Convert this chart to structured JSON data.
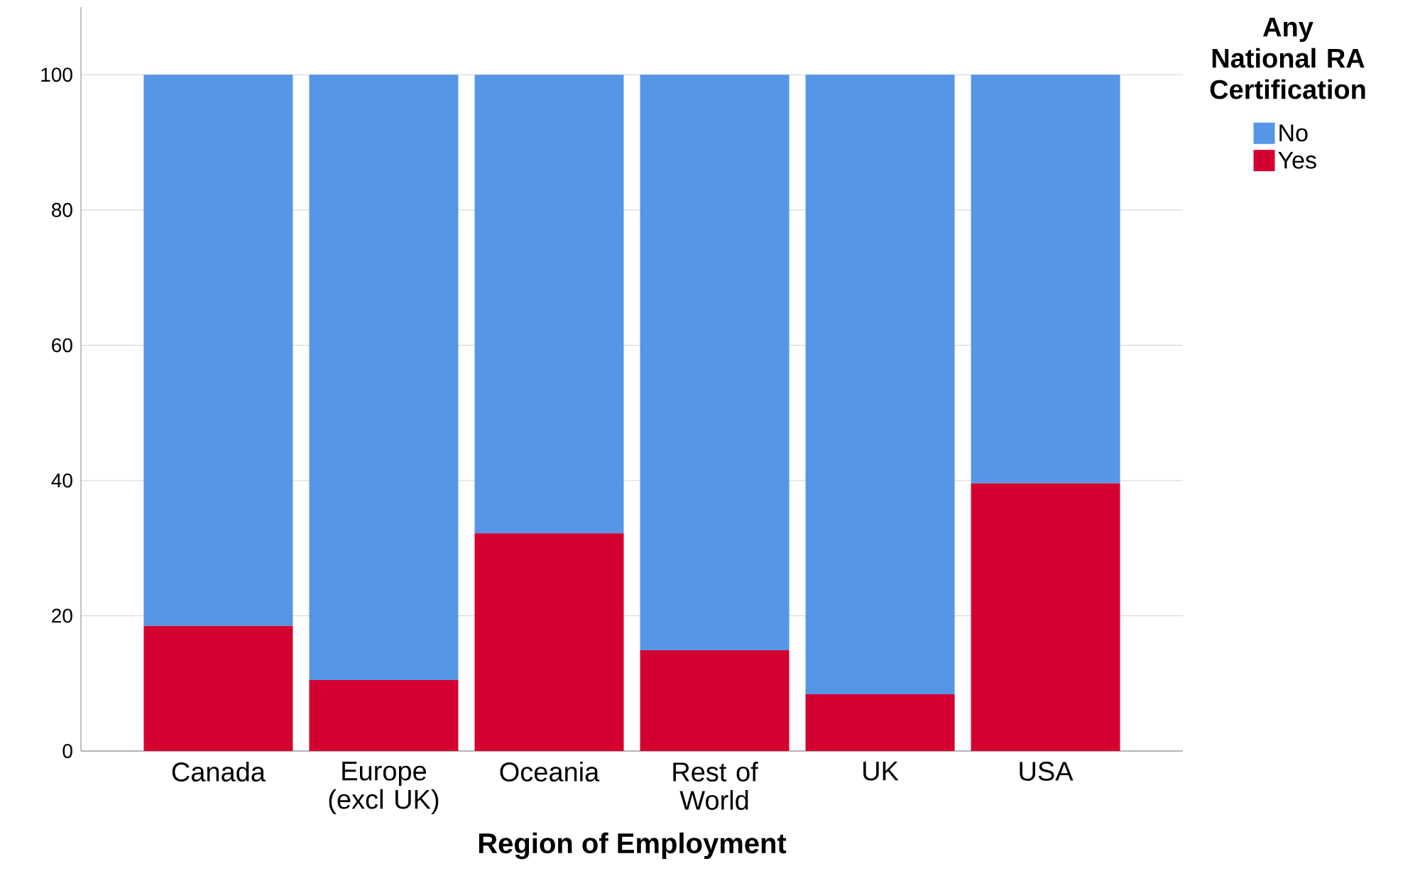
{
  "chart_data": {
    "type": "bar",
    "stacked": true,
    "xlabel": "Region of Employment",
    "legend_title": "Any National RA Certification",
    "categories": [
      "Canada",
      "Europe (excl UK)",
      "Oceania",
      "Rest of World",
      "UK",
      "USA"
    ],
    "series": [
      {
        "name": "Yes",
        "color": "#d50032",
        "values": [
          18.5,
          10.5,
          32.2,
          14.9,
          8.4,
          39.6
        ]
      },
      {
        "name": "No",
        "color": "#5596e6",
        "values": [
          81.5,
          89.5,
          67.8,
          85.1,
          91.6,
          60.4
        ]
      }
    ],
    "ylim": [
      0,
      110
    ],
    "yticks": [
      0,
      20,
      40,
      60,
      80,
      100
    ],
    "grid": "y",
    "legend": "right"
  }
}
